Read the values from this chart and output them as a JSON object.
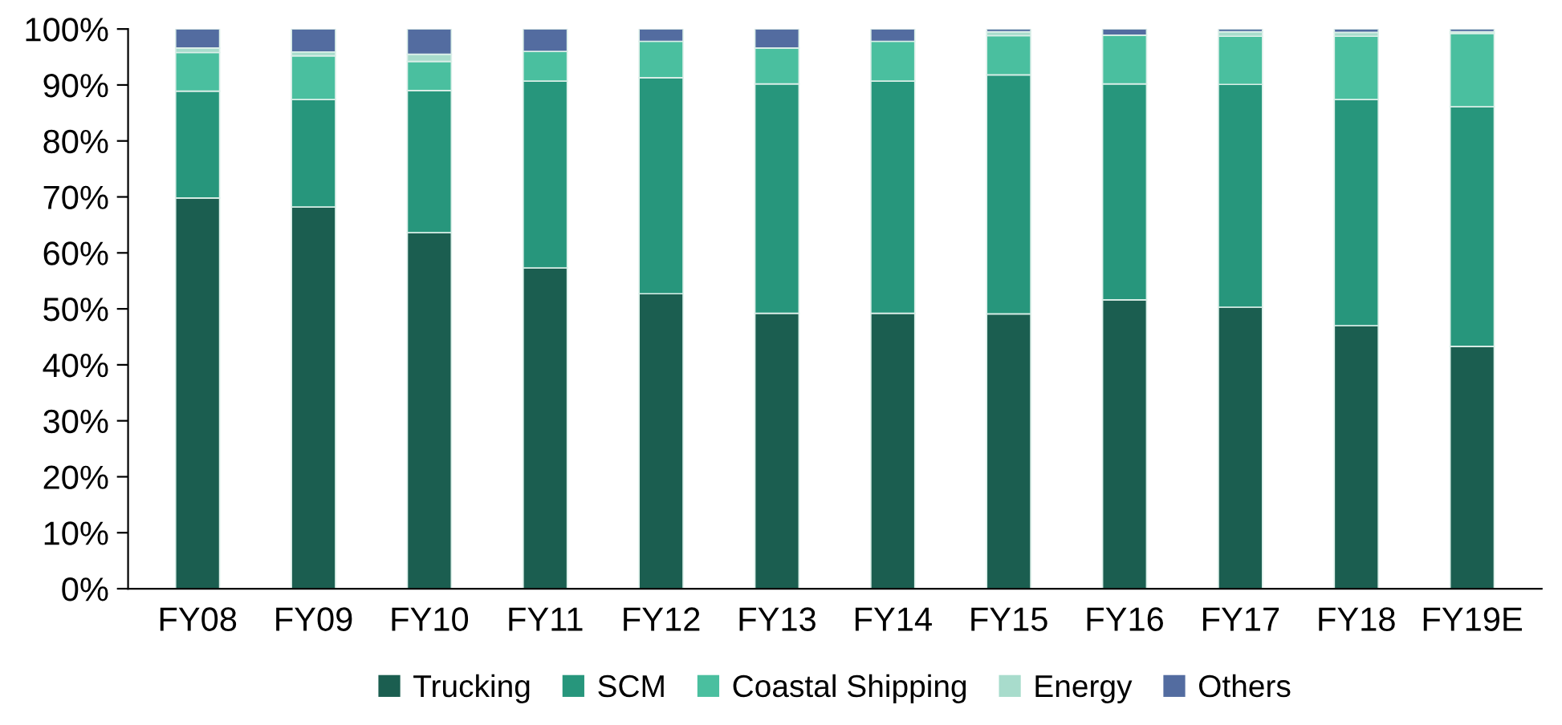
{
  "chart_data": {
    "type": "bar",
    "stacked": true,
    "legend": "bottom",
    "grid": false,
    "categories": [
      "FY08",
      "FY09",
      "FY10",
      "FY11",
      "FY12",
      "FY13",
      "FY14",
      "FY15",
      "FY16",
      "FY17",
      "FY18",
      "FY19E"
    ],
    "series": [
      {
        "name": "Trucking",
        "color": "#1b5e50",
        "values": [
          69.8,
          68.2,
          63.6,
          57.3,
          52.7,
          49.2,
          49.2,
          49.1,
          51.6,
          50.3,
          47.0,
          43.3
        ]
      },
      {
        "name": "SCM",
        "color": "#27967c",
        "values": [
          19.1,
          19.2,
          25.4,
          33.4,
          38.6,
          41.0,
          41.5,
          42.7,
          38.6,
          39.8,
          40.4,
          42.8
        ]
      },
      {
        "name": "Coastal Shipping",
        "color": "#4abf9f",
        "values": [
          6.9,
          7.8,
          5.2,
          5.3,
          6.5,
          6.4,
          7.1,
          7.0,
          8.7,
          8.6,
          11.3,
          13.1
        ]
      },
      {
        "name": "Energy",
        "color": "#a8dccc",
        "values": [
          0.8,
          0.7,
          1.3,
          null,
          null,
          null,
          null,
          0.7,
          null,
          0.8,
          0.7,
          0.3
        ]
      },
      {
        "name": "Others",
        "color": "#536ca0",
        "values": [
          3.4,
          4.1,
          4.5,
          4.0,
          2.2,
          3.4,
          2.2,
          0.5,
          1.1,
          0.5,
          0.6,
          0.5
        ]
      }
    ],
    "ylim": [
      0,
      100
    ],
    "yticks": [
      {
        "value": 0,
        "label": "0%"
      },
      {
        "value": 10,
        "label": "10%"
      },
      {
        "value": 20,
        "label": "20%"
      },
      {
        "value": 30,
        "label": "30%"
      },
      {
        "value": 40,
        "label": "40%"
      },
      {
        "value": 50,
        "label": "50%"
      },
      {
        "value": 60,
        "label": "60%"
      },
      {
        "value": 70,
        "label": "70%"
      },
      {
        "value": 80,
        "label": "80%"
      },
      {
        "value": 90,
        "label": "90%"
      },
      {
        "value": 100,
        "label": "100%"
      }
    ]
  }
}
